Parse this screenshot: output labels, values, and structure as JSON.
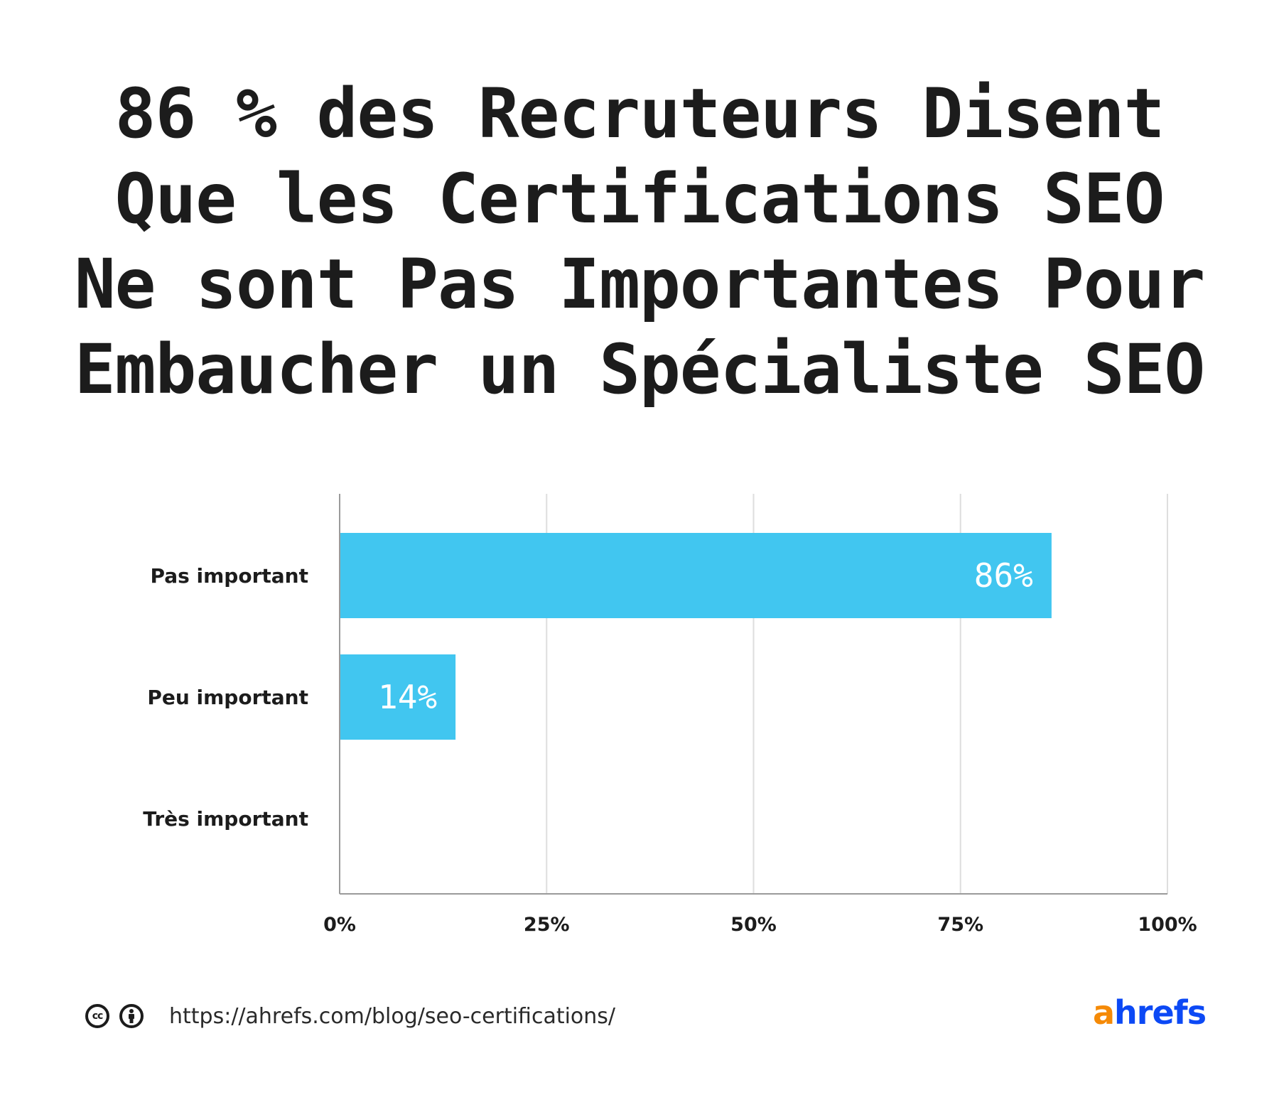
{
  "title_lines": [
    "86 % des Recruteurs Disent",
    "Que les Certifications SEO",
    "Ne sont Pas Importantes Pour",
    "Embaucher un Spécialiste SEO"
  ],
  "chart_data": {
    "type": "bar",
    "orientation": "horizontal",
    "categories": [
      "Pas important",
      "Peu important",
      "Très important"
    ],
    "values": [
      86,
      14,
      0
    ],
    "data_labels": [
      "86%",
      "14%",
      ""
    ],
    "xlim": [
      0,
      100
    ],
    "x_ticks": [
      0,
      25,
      50,
      75,
      100
    ],
    "x_tick_labels": [
      "0%",
      "25%",
      "50%",
      "75%",
      "100%"
    ],
    "grid": "vertical",
    "bar_color": "#41c6f0",
    "grid_color": "#dedede",
    "axis_color": "#9a9a9a",
    "legend": "none"
  },
  "footer": {
    "license_icons": [
      "cc-icon",
      "attribution-icon"
    ],
    "cc_text": "cc",
    "url": "https://ahrefs.com/blog/seo-certifications/"
  },
  "brand": {
    "logo_a": "a",
    "logo_rest": "hrefs",
    "colors": {
      "a": "#f58a07",
      "rest": "#0c49f5"
    }
  }
}
